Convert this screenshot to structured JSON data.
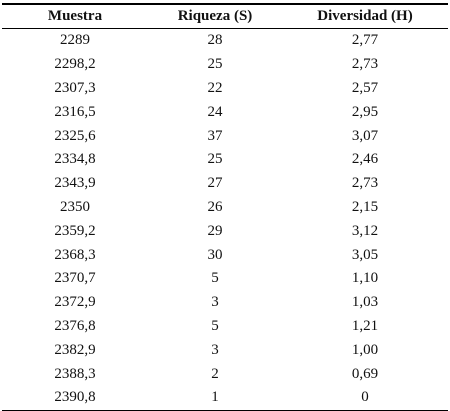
{
  "table": {
    "columns": [
      "Muestra",
      "Riqueza (S)",
      "Diversidad (H)"
    ],
    "rows": [
      [
        "2289",
        "28",
        "2,77"
      ],
      [
        "2298,2",
        "25",
        "2,73"
      ],
      [
        "2307,3",
        "22",
        "2,57"
      ],
      [
        "2316,5",
        "24",
        "2,95"
      ],
      [
        "2325,6",
        "37",
        "3,07"
      ],
      [
        "2334,8",
        "25",
        "2,46"
      ],
      [
        "2343,9",
        "27",
        "2,73"
      ],
      [
        "2350",
        "26",
        "2,15"
      ],
      [
        "2359,2",
        "29",
        "3,12"
      ],
      [
        "2368,3",
        "30",
        "3,05"
      ],
      [
        "2370,7",
        "5",
        "1,10"
      ],
      [
        "2372,9",
        "3",
        "1,03"
      ],
      [
        "2376,8",
        "5",
        "1,21"
      ],
      [
        "2382,9",
        "3",
        "1,00"
      ],
      [
        "2388,3",
        "2",
        "0,69"
      ],
      [
        "2390,8",
        "1",
        "0"
      ]
    ]
  }
}
